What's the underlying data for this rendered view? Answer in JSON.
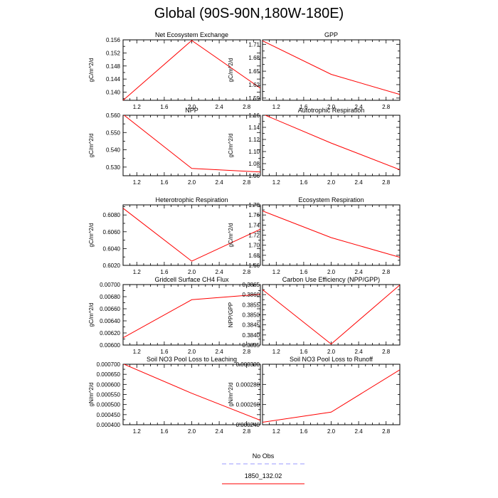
{
  "page_title": "Global (90S-90N,180W-180E)",
  "legend": {
    "items": [
      {
        "label": "No Obs",
        "color": "#9999ff",
        "dash": true
      },
      {
        "label": "1850_132.02",
        "color": "#ff0000",
        "dash": false
      }
    ]
  },
  "chart_data": [
    {
      "type": "line",
      "title": "Net Ecosystem Exchange",
      "ylabel": "gC/m^2/d",
      "x": [
        1,
        2,
        3
      ],
      "xlim": [
        1,
        3
      ],
      "xticks": [
        "1.2",
        "1.6",
        "2.0",
        "2.4",
        "2.8"
      ],
      "ylim": [
        0.1375,
        0.156
      ],
      "yticks": [
        "0.140",
        "0.144",
        "0.148",
        "0.152",
        "0.156"
      ],
      "series": [
        {
          "values": [
            0.1375,
            0.1558,
            0.1412
          ]
        }
      ]
    },
    {
      "type": "line",
      "title": "GPP",
      "ylabel": "gC/m^2/d",
      "x": [
        1,
        2,
        3
      ],
      "xlim": [
        1,
        3
      ],
      "xticks": [
        "1.2",
        "1.6",
        "2.0",
        "2.4",
        "2.8"
      ],
      "ylim": [
        1.585,
        1.72
      ],
      "yticks": [
        "1.59",
        "1.62",
        "1.65",
        "1.68",
        "1.71"
      ],
      "series": [
        {
          "values": [
            1.718,
            1.643,
            1.598
          ]
        }
      ]
    },
    {
      "type": "line",
      "title": "NPP",
      "ylabel": "gC/m^2/d",
      "x": [
        1,
        2,
        3
      ],
      "xlim": [
        1,
        3
      ],
      "xticks": [
        "1.2",
        "1.6",
        "2.0",
        "2.4",
        "2.8"
      ],
      "ylim": [
        0.525,
        0.56
      ],
      "yticks": [
        "0.530",
        "0.540",
        "0.550",
        "0.560"
      ],
      "series": [
        {
          "values": [
            0.5605,
            0.5292,
            0.5272
          ]
        }
      ]
    },
    {
      "type": "line",
      "title": "Autotrophic Respiration",
      "ylabel": "gC/m^2/d",
      "x": [
        1,
        2,
        3
      ],
      "xlim": [
        1,
        3
      ],
      "xticks": [
        "1.2",
        "1.6",
        "2.0",
        "2.4",
        "2.8"
      ],
      "ylim": [
        1.06,
        1.16
      ],
      "yticks": [
        "1.06",
        "1.08",
        "1.10",
        "1.12",
        "1.14",
        "1.16"
      ],
      "series": [
        {
          "values": [
            1.162,
            1.114,
            1.07
          ]
        }
      ]
    },
    {
      "type": "line",
      "title": "Heterotrophic Respiration",
      "ylabel": "gC/m^2/d",
      "x": [
        1,
        2,
        3
      ],
      "xlim": [
        1,
        3
      ],
      "xticks": [
        "1.2",
        "1.6",
        "2.0",
        "2.4",
        "2.8"
      ],
      "ylim": [
        0.602,
        0.6092
      ],
      "yticks": [
        "0.6020",
        "0.6040",
        "0.6060",
        "0.6080"
      ],
      "series": [
        {
          "values": [
            0.6088,
            0.6025,
            0.6063
          ]
        }
      ]
    },
    {
      "type": "line",
      "title": "Ecosystem Respiration",
      "ylabel": "gC/m^2/d",
      "x": [
        1,
        2,
        3
      ],
      "xlim": [
        1,
        3
      ],
      "xticks": [
        "1.2",
        "1.6",
        "2.0",
        "2.4",
        "2.8"
      ],
      "ylim": [
        1.66,
        1.78
      ],
      "yticks": [
        "1.66",
        "1.68",
        "1.70",
        "1.72",
        "1.74",
        "1.76",
        "1.78"
      ],
      "series": [
        {
          "values": [
            1.768,
            1.715,
            1.676
          ]
        }
      ]
    },
    {
      "type": "line",
      "title": "Gridcell Surface CH4 Flux",
      "ylabel": "gC/m^2/d",
      "x": [
        1,
        2,
        3
      ],
      "xlim": [
        1,
        3
      ],
      "xticks": [
        "1.2",
        "1.6",
        "2.0",
        "2.4",
        "2.8"
      ],
      "ylim": [
        0.006,
        0.007
      ],
      "yticks": [
        "0.00600",
        "0.00620",
        "0.00640",
        "0.00660",
        "0.00680",
        "0.00700"
      ],
      "series": [
        {
          "values": [
            0.00612,
            0.00675,
            0.00684
          ]
        }
      ]
    },
    {
      "type": "line",
      "title": "Carbon Use Efficiency (NPP/GPP)",
      "ylabel": "NPP/GPP",
      "x": [
        1,
        2,
        3
      ],
      "xlim": [
        1,
        3
      ],
      "xticks": [
        "1.2",
        "1.6",
        "2.0",
        "2.4",
        "2.8"
      ],
      "ylim": [
        0.3835,
        0.3865
      ],
      "yticks": [
        "0.3835",
        "0.3840",
        "0.3845",
        "0.3850",
        "0.3855",
        "0.3860",
        "0.3865"
      ],
      "series": [
        {
          "values": [
            0.38625,
            0.38355,
            0.38648
          ]
        }
      ]
    },
    {
      "type": "line",
      "title": "Soil NO3 Pool Loss to Leaching",
      "ylabel": "gN/m^2/d",
      "x": [
        1,
        2,
        3
      ],
      "xlim": [
        1,
        3
      ],
      "xticks": [
        "1.2",
        "1.6",
        "2.0",
        "2.4",
        "2.8"
      ],
      "ylim": [
        0.0004,
        0.0007
      ],
      "yticks": [
        "0.000400",
        "0.000450",
        "0.000500",
        "0.000550",
        "0.000600",
        "0.000650",
        "0.000700"
      ],
      "series": [
        {
          "values": [
            0.000702,
            0.000556,
            0.000422
          ]
        }
      ]
    },
    {
      "type": "line",
      "title": "Soil NO3 Pool Loss to Runoff",
      "ylabel": "gN/m^2/d",
      "x": [
        1,
        2,
        3
      ],
      "xlim": [
        1,
        3
      ],
      "xticks": [
        "1.2",
        "1.6",
        "2.0",
        "2.4",
        "2.8"
      ],
      "ylim": [
        0.00024,
        0.0003
      ],
      "yticks": [
        "0.000240",
        "0.000260",
        "0.000280",
        "0.000300"
      ],
      "series": [
        {
          "values": [
            0.0002425,
            0.0002525,
            0.0002945
          ]
        }
      ]
    }
  ]
}
